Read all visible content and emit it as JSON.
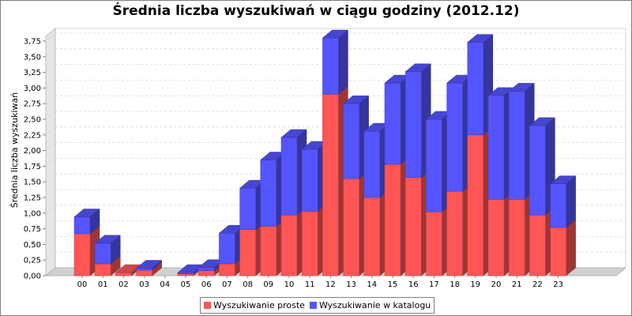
{
  "chart_data": {
    "type": "bar",
    "stacked": true,
    "three_d": true,
    "title": "Średnia liczba wyszukiwań w ciągu godziny (2012.12)",
    "ylabel": "Średnia liczba wyszukiwań",
    "xlabel": "",
    "ylim": [
      0,
      3.75
    ],
    "ytick_labels": [
      "0,00",
      "0,25",
      "0,50",
      "0,75",
      "1,00",
      "1,25",
      "1,50",
      "1,75",
      "2,00",
      "2,25",
      "2,50",
      "2,75",
      "3,00",
      "3,25",
      "3,50",
      "3,75"
    ],
    "categories": [
      "00",
      "01",
      "02",
      "03",
      "04",
      "05",
      "06",
      "07",
      "08",
      "09",
      "10",
      "11",
      "12",
      "13",
      "14",
      "15",
      "16",
      "17",
      "18",
      "19",
      "20",
      "21",
      "22",
      "23"
    ],
    "series": [
      {
        "name": "Wyszukiwanie proste",
        "color": "#ff5555",
        "values": [
          0.67,
          0.19,
          0.05,
          0.09,
          0.0,
          0.03,
          0.08,
          0.19,
          0.74,
          0.79,
          0.97,
          1.03,
          2.9,
          1.55,
          1.25,
          1.78,
          1.57,
          1.02,
          1.35,
          2.25,
          1.22,
          1.22,
          0.97,
          0.77
        ]
      },
      {
        "name": "Wyszukiwanie w katalogu",
        "color": "#5555ff",
        "values": [
          0.27,
          0.33,
          0.0,
          0.03,
          0.0,
          0.02,
          0.05,
          0.49,
          0.66,
          1.06,
          1.24,
          0.99,
          0.9,
          1.2,
          1.06,
          1.3,
          1.69,
          1.48,
          1.73,
          1.48,
          1.66,
          1.73,
          1.43,
          0.7
        ]
      }
    ],
    "grid": true,
    "legend_position": "bottom"
  }
}
